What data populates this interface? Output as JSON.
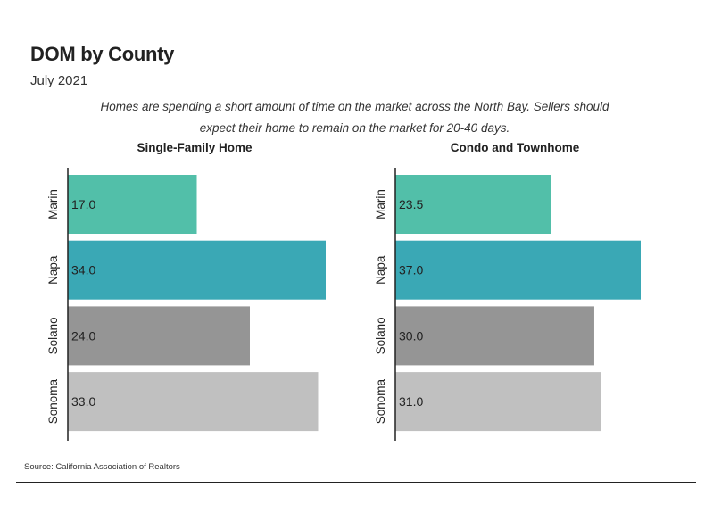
{
  "title": "DOM by County",
  "subtitle": "July 2021",
  "description": "Homes are spending a short amount of time on the market across the North Bay. Sellers should expect their home to remain on the market for 20-40 days.",
  "source": "Source:  California Association of Realtors",
  "colors": {
    "Marin": "#52bfa9",
    "Napa": "#3aa8b5",
    "Solano": "#959595",
    "Sonoma": "#c0c0c0",
    "axis": "#222222",
    "text": "#222222"
  },
  "chart_data": [
    {
      "type": "bar",
      "orientation": "horizontal",
      "title": "Single-Family Home",
      "categories": [
        "Marin",
        "Napa",
        "Solano",
        "Sonoma"
      ],
      "values": [
        17.0,
        34.0,
        24.0,
        33.0
      ],
      "value_labels": [
        "17.0",
        "34.0",
        "24.0",
        "33.0"
      ],
      "xlim": [
        0,
        34
      ],
      "xlabel": "",
      "ylabel": ""
    },
    {
      "type": "bar",
      "orientation": "horizontal",
      "title": "Condo and Townhome",
      "categories": [
        "Marin",
        "Napa",
        "Solano",
        "Sonoma"
      ],
      "values": [
        23.5,
        37.0,
        30.0,
        31.0
      ],
      "value_labels": [
        "23.5",
        "37.0",
        "30.0",
        "31.0"
      ],
      "xlim": [
        0,
        37
      ],
      "xlabel": "",
      "ylabel": ""
    }
  ]
}
